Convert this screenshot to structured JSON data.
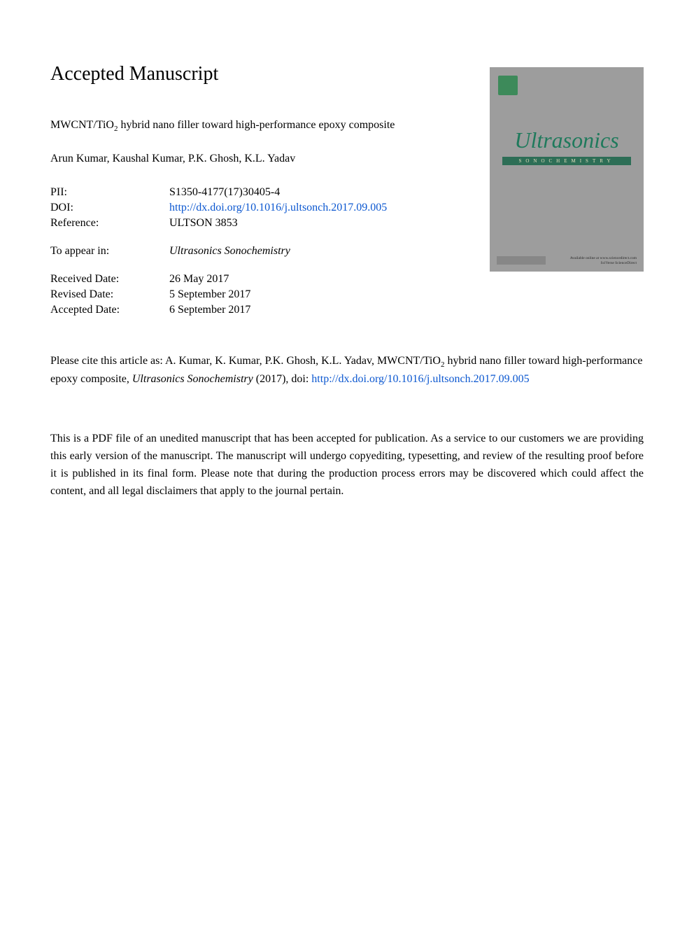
{
  "heading": "Accepted Manuscript",
  "article_title_pre": "MWCNT/TiO",
  "article_title_sub": "2",
  "article_title_post": " hybrid nano filler toward high-performance epoxy composite",
  "authors": "Arun Kumar, Kaushal Kumar, P.K. Ghosh, K.L. Yadav",
  "meta": {
    "pii_label": "PII:",
    "pii_value": "S1350-4177(17)30405-4",
    "doi_label": "DOI:",
    "doi_value": "http://dx.doi.org/10.1016/j.ultsonch.2017.09.005",
    "ref_label": "Reference:",
    "ref_value": "ULTSON 3853",
    "appear_label": "To appear in:",
    "appear_value": "Ultrasonics Sonochemistry",
    "received_label": "Received Date:",
    "received_value": "26 May 2017",
    "revised_label": "Revised Date:",
    "revised_value": "5 September 2017",
    "accepted_label": "Accepted Date:",
    "accepted_value": "6 September 2017"
  },
  "cover": {
    "title": "Ultrasonics",
    "subtitle": "SONOCHEMISTRY",
    "bottom1": "Available online at www.sciencedirect.com",
    "bottom2": "SciVerse ScienceDirect",
    "background_color": "#9d9d9d",
    "title_color": "#1f7a5c",
    "band_color": "#2d6e56"
  },
  "citation": {
    "pre": "Please cite this article as: A. Kumar, K. Kumar, P.K. Ghosh, K.L. Yadav, MWCNT/TiO",
    "sub": "2",
    "mid": " hybrid nano filler toward high-performance epoxy composite, ",
    "journal": "Ultrasonics Sonochemistry",
    "post": " (2017), doi: ",
    "doi_link": "http://dx.doi.org/10.1016/j.ultsonch.2017.09.005"
  },
  "disclaimer": "This is a PDF file of an unedited manuscript that has been accepted for publication. As a service to our customers we are providing this early version of the manuscript. The manuscript will undergo copyediting, typesetting, and review of the resulting proof before it is published in its final form. Please note that during the production process errors may be discovered which could affect the content, and all legal disclaimers that apply to the journal pertain.",
  "colors": {
    "text": "#000000",
    "link": "#0b57d0",
    "background": "#ffffff"
  },
  "typography": {
    "heading_fontsize": 28,
    "body_fontsize": 16,
    "font_family": "Georgia, Times New Roman, serif"
  }
}
